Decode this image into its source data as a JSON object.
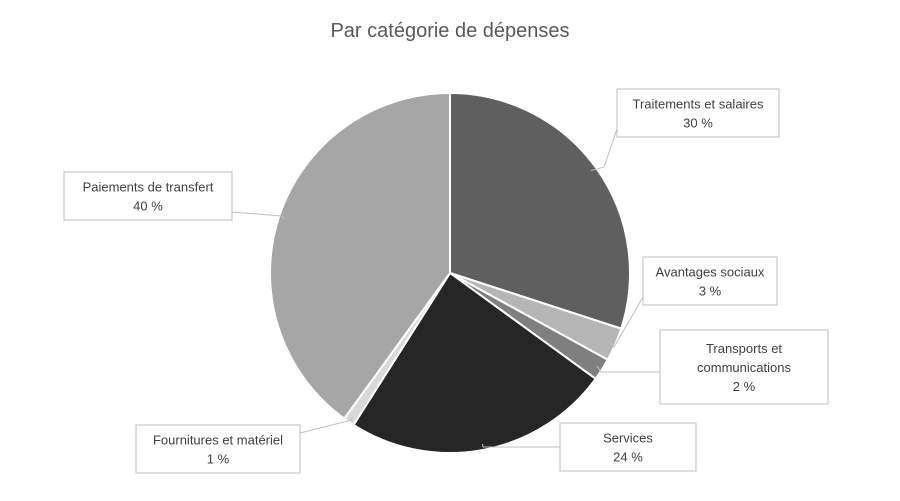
{
  "chart_data": {
    "type": "pie",
    "title": "Par catégorie de dépenses",
    "start_angle_deg": 0,
    "direction": "clockwise",
    "slices": [
      {
        "name_lines": [
          "Traitements et salaires"
        ],
        "value_label": "30 %",
        "value": 30,
        "color": "#5f5f5f"
      },
      {
        "name_lines": [
          "Avantages sociaux"
        ],
        "value_label": "3 %",
        "value": 3,
        "color": "#b5b5b5"
      },
      {
        "name_lines": [
          "Transports et",
          "communications"
        ],
        "value_label": "2 %",
        "value": 2,
        "color": "#7f7f7f"
      },
      {
        "name_lines": [
          "Services"
        ],
        "value_label": "24 %",
        "value": 24,
        "color": "#262626"
      },
      {
        "name_lines": [
          "Fournitures et matériel"
        ],
        "value_label": "1 %",
        "value": 1,
        "color": "#d9d9d9"
      },
      {
        "name_lines": [
          "Paiements de transfert"
        ],
        "value_label": "40 %",
        "value": 40,
        "color": "#a6a6a6"
      }
    ]
  }
}
